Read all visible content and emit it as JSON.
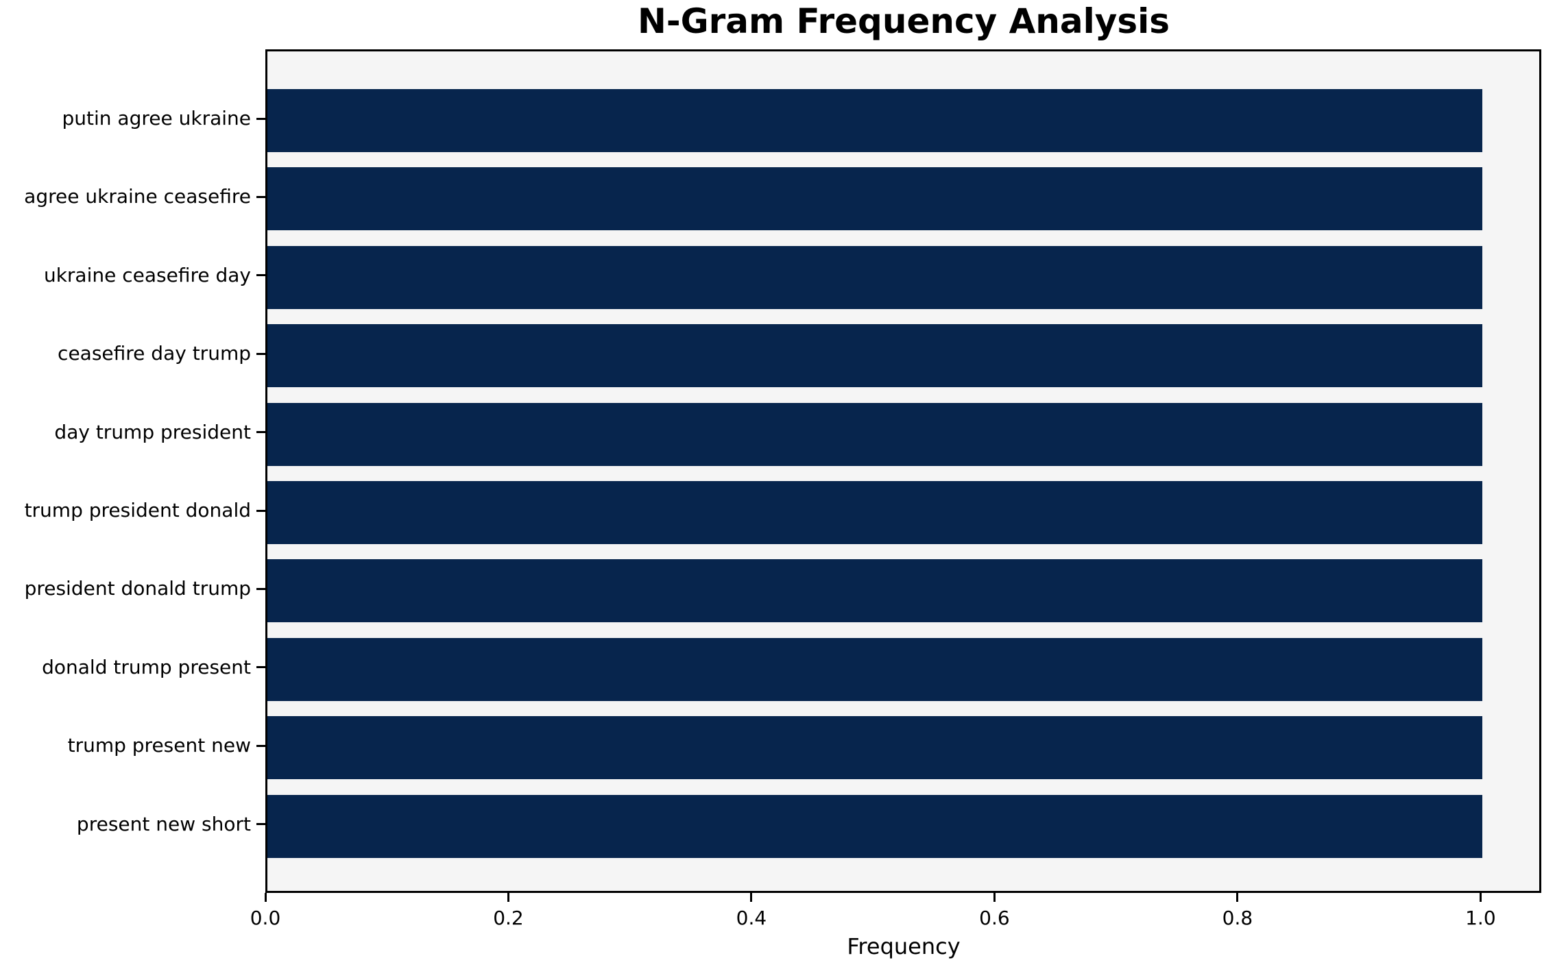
{
  "chart_data": {
    "type": "bar",
    "orientation": "horizontal",
    "title": "N-Gram Frequency Analysis",
    "xlabel": "Frequency",
    "ylabel": "",
    "categories": [
      "putin agree ukraine",
      "agree ukraine ceasefire",
      "ukraine ceasefire day",
      "ceasefire day trump",
      "day trump president",
      "trump president donald",
      "president donald trump",
      "donald trump present",
      "trump present new",
      "present new short"
    ],
    "values": [
      1.0,
      1.0,
      1.0,
      1.0,
      1.0,
      1.0,
      1.0,
      1.0,
      1.0,
      1.0
    ],
    "xlim": [
      0.0,
      1.05
    ],
    "x_ticks": [
      {
        "value": 0.0,
        "label": "0.0"
      },
      {
        "value": 0.2,
        "label": "0.2"
      },
      {
        "value": 0.4,
        "label": "0.4"
      },
      {
        "value": 0.6,
        "label": "0.6"
      },
      {
        "value": 0.8,
        "label": "0.8"
      },
      {
        "value": 1.0,
        "label": "1.0"
      }
    ],
    "grid": false,
    "legend": "none",
    "colors": {
      "bar": "#07254d",
      "plot_bg": "#f5f5f5",
      "figure_bg": "#ffffff",
      "spine": "#000000",
      "text": "#000000"
    }
  }
}
